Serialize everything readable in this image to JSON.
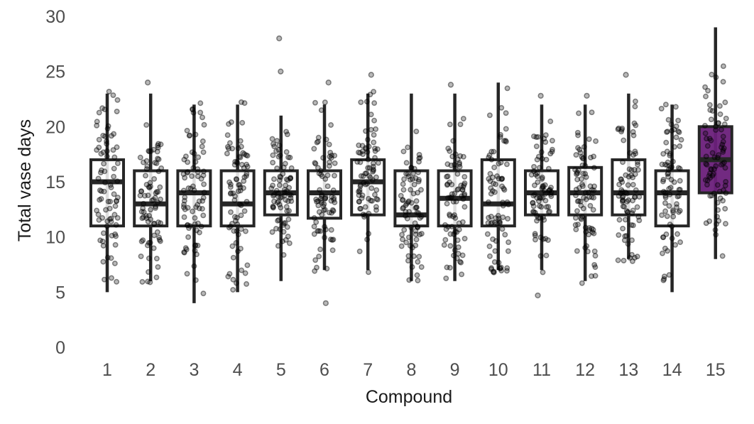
{
  "chart_data": {
    "type": "boxplot",
    "xlabel": "Compound",
    "ylabel": "Total vase days",
    "ylim": [
      0,
      30
    ],
    "yticks": [
      0,
      5,
      10,
      15,
      20,
      25,
      30
    ],
    "grid": false,
    "legend": "none",
    "categories": [
      "1",
      "2",
      "3",
      "4",
      "5",
      "6",
      "7",
      "8",
      "9",
      "10",
      "11",
      "12",
      "13",
      "14",
      "15"
    ],
    "boxes": [
      {
        "category": "1",
        "whisker_low": 5,
        "q1": 11,
        "median": 15,
        "q3": 17,
        "whisker_high": 23,
        "outliers": []
      },
      {
        "category": "2",
        "whisker_low": 6,
        "q1": 11,
        "median": 13,
        "q3": 16,
        "whisker_high": 23,
        "outliers": [
          24
        ]
      },
      {
        "category": "3",
        "whisker_low": 4,
        "q1": 11,
        "median": 14,
        "q3": 16,
        "whisker_high": 22,
        "outliers": []
      },
      {
        "category": "4",
        "whisker_low": 5,
        "q1": 11,
        "median": 13,
        "q3": 16,
        "whisker_high": 22,
        "outliers": []
      },
      {
        "category": "5",
        "whisker_low": 6,
        "q1": 12,
        "median": 14,
        "q3": 16,
        "whisker_high": 21,
        "outliers": [
          25,
          28
        ]
      },
      {
        "category": "6",
        "whisker_low": 7,
        "q1": 11.7,
        "median": 14,
        "q3": 16,
        "whisker_high": 22,
        "outliers": [
          4,
          24
        ]
      },
      {
        "category": "7",
        "whisker_low": 7,
        "q1": 12,
        "median": 15,
        "q3": 17,
        "whisker_high": 23,
        "outliers": [
          24.7
        ]
      },
      {
        "category": "8",
        "whisker_low": 6,
        "q1": 11,
        "median": 12,
        "q3": 16,
        "whisker_high": 23,
        "outliers": []
      },
      {
        "category": "9",
        "whisker_low": 6,
        "q1": 11,
        "median": 13.5,
        "q3": 16,
        "whisker_high": 23,
        "outliers": [
          23.8
        ]
      },
      {
        "category": "10",
        "whisker_low": 7,
        "q1": 11,
        "median": 13,
        "q3": 17,
        "whisker_high": 24,
        "outliers": []
      },
      {
        "category": "11",
        "whisker_low": 7,
        "q1": 12,
        "median": 14,
        "q3": 16,
        "whisker_high": 22,
        "outliers": [
          4.7,
          22.8
        ]
      },
      {
        "category": "12",
        "whisker_low": 6,
        "q1": 12,
        "median": 14,
        "q3": 16.3,
        "whisker_high": 22,
        "outliers": [
          22.8
        ]
      },
      {
        "category": "13",
        "whisker_low": 8,
        "q1": 12,
        "median": 14,
        "q3": 17,
        "whisker_high": 23,
        "outliers": [
          24.7
        ]
      },
      {
        "category": "14",
        "whisker_low": 5,
        "q1": 11,
        "median": 14,
        "q3": 16,
        "whisker_high": 22,
        "outliers": []
      },
      {
        "category": "15",
        "whisker_low": 8,
        "q1": 14,
        "median": 17,
        "q3": 20,
        "whisker_high": 29,
        "outliers": [],
        "highlight": true
      }
    ],
    "jitter_points_per_group": 80,
    "colors": {
      "box_edge": "#262626",
      "box_fill": "#ffffff",
      "highlight_fill": "#6a1f7a",
      "points": "#000000",
      "tick_text": "#4d4d4d",
      "label_text": "#1a1a1a"
    }
  }
}
